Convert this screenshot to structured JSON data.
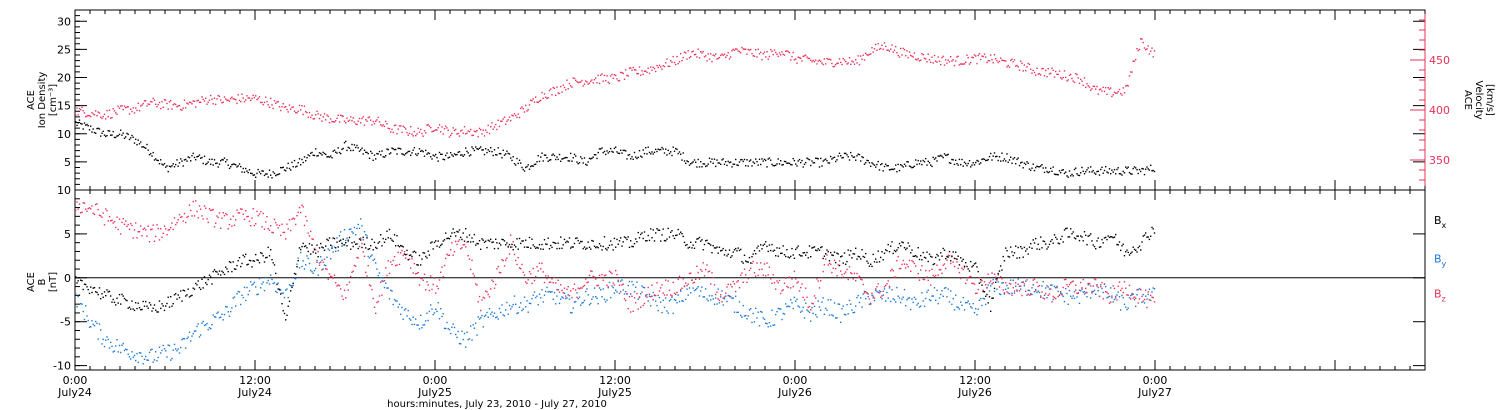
{
  "chart_data": [
    {
      "type": "scatter",
      "panel": "top",
      "ylabel_left": [
        "ACE",
        "Ion Density",
        "[cm⁻³]"
      ],
      "ylabel_right": [
        "ACE",
        "Velocity",
        "[km/s]"
      ],
      "ylim_left": [
        0,
        32
      ],
      "yticks_left": [
        5,
        10,
        15,
        20,
        25,
        30
      ],
      "ylim_right": [
        320,
        500
      ],
      "yticks_right": [
        350,
        400,
        450
      ],
      "colors": {
        "density": "#000000",
        "velocity": "#e8325a"
      },
      "series": [
        {
          "axis": "left",
          "color_key": "density",
          "x": [
            0,
            1,
            2,
            3,
            4,
            5,
            6,
            7,
            8,
            9,
            10,
            11,
            12,
            13,
            14,
            15,
            16,
            17,
            18,
            19,
            20,
            21,
            22,
            23,
            24,
            25,
            26,
            27,
            28,
            29,
            30,
            31,
            32,
            33,
            34,
            35,
            36,
            37,
            38,
            39,
            40,
            41,
            42,
            43,
            44,
            45,
            46,
            47,
            48,
            49,
            50,
            51,
            52,
            53,
            54,
            55,
            56,
            57,
            58,
            59,
            60,
            61,
            62,
            63,
            64,
            65,
            66,
            67,
            68,
            69,
            70,
            71,
            72
          ],
          "y": [
            12,
            11,
            10,
            10,
            9,
            7,
            4,
            5,
            6,
            5,
            5,
            4,
            3,
            3,
            4,
            5,
            7,
            6,
            8,
            7,
            6,
            7,
            7,
            7,
            6,
            6,
            7,
            7,
            7,
            6,
            4,
            6,
            6,
            6,
            5,
            7,
            7,
            6,
            7,
            7,
            7,
            5,
            5,
            5,
            5,
            5,
            5,
            5,
            5,
            5,
            5,
            6,
            6,
            5,
            4,
            4,
            5,
            5,
            6,
            5,
            5,
            6,
            6,
            5,
            4,
            4,
            3,
            3.5,
            3.5,
            3.5,
            3.5,
            3.5,
            4
          ]
        },
        {
          "axis": "right",
          "color_key": "velocity",
          "x": [
            0,
            1,
            2,
            3,
            4,
            5,
            6,
            7,
            8,
            9,
            10,
            11,
            12,
            13,
            14,
            15,
            16,
            17,
            18,
            19,
            20,
            21,
            22,
            23,
            24,
            25,
            26,
            27,
            28,
            29,
            30,
            31,
            32,
            33,
            34,
            35,
            36,
            37,
            38,
            39,
            40,
            41,
            42,
            43,
            44,
            45,
            46,
            47,
            48,
            49,
            50,
            51,
            52,
            53,
            54,
            55,
            56,
            57,
            58,
            59,
            60,
            61,
            62,
            63,
            64,
            65,
            66,
            67,
            68,
            69,
            70,
            71,
            72
          ],
          "y": [
            400,
            398,
            396,
            400,
            402,
            408,
            406,
            405,
            408,
            412,
            410,
            412,
            412,
            408,
            402,
            402,
            395,
            392,
            390,
            390,
            390,
            382,
            380,
            378,
            385,
            378,
            380,
            378,
            385,
            392,
            402,
            415,
            420,
            428,
            430,
            432,
            432,
            438,
            440,
            445,
            450,
            458,
            455,
            452,
            460,
            458,
            455,
            460,
            452,
            450,
            448,
            450,
            448,
            460,
            465,
            458,
            455,
            452,
            450,
            450,
            452,
            452,
            448,
            445,
            440,
            438,
            435,
            432,
            420,
            418,
            420,
            470,
            455
          ]
        }
      ]
    },
    {
      "type": "scatter",
      "panel": "bottom",
      "ylabel_left": [
        "ACE",
        "B",
        "[nT]"
      ],
      "ylim": [
        -10.5,
        10
      ],
      "yticks": [
        -10,
        -5,
        0,
        5,
        10
      ],
      "zero_line": true,
      "legend_position": "right",
      "colors": {
        "Bx": "#000000",
        "By": "#1a78d6",
        "Bz": "#e8325a"
      },
      "series": [
        {
          "name": "Bx",
          "color_key": "Bx",
          "x": [
            0,
            1,
            2,
            3,
            4,
            5,
            6,
            7,
            8,
            9,
            10,
            11,
            12,
            13,
            14,
            15,
            16,
            17,
            18,
            19,
            20,
            21,
            22,
            23,
            24,
            25,
            26,
            27,
            28,
            29,
            30,
            31,
            32,
            33,
            34,
            35,
            36,
            37,
            38,
            39,
            40,
            41,
            42,
            43,
            44,
            45,
            46,
            47,
            48,
            49,
            50,
            51,
            52,
            53,
            54,
            55,
            56,
            57,
            58,
            59,
            60,
            61,
            62,
            63,
            64,
            65,
            66,
            67,
            68,
            69,
            70,
            71,
            72
          ],
          "y": [
            -0.5,
            -1,
            -2,
            -2.5,
            -3,
            -3.5,
            -3,
            -2,
            -1,
            0,
            1,
            2,
            2,
            3,
            -5,
            4,
            3,
            4,
            4,
            4,
            4,
            5,
            3,
            2,
            4,
            5,
            5,
            4,
            4,
            4,
            4,
            4,
            4,
            4,
            4,
            4,
            4,
            4,
            5,
            5,
            5,
            4,
            4,
            3,
            3,
            2,
            4,
            3,
            3,
            3,
            3,
            2,
            3,
            2,
            3,
            4,
            3,
            2,
            3,
            2,
            1,
            -3,
            3,
            3,
            4,
            4,
            5,
            5,
            4,
            5,
            3,
            4,
            6
          ]
        },
        {
          "name": "By",
          "color_key": "By",
          "x": [
            0,
            1,
            2,
            3,
            4,
            5,
            6,
            7,
            8,
            9,
            10,
            11,
            12,
            13,
            14,
            15,
            16,
            17,
            18,
            19,
            20,
            21,
            22,
            23,
            24,
            25,
            26,
            27,
            28,
            29,
            30,
            31,
            32,
            33,
            34,
            35,
            36,
            37,
            38,
            39,
            40,
            41,
            42,
            43,
            44,
            45,
            46,
            47,
            48,
            49,
            50,
            51,
            52,
            53,
            54,
            55,
            56,
            57,
            58,
            59,
            60,
            61,
            62,
            63,
            64,
            65,
            66,
            67,
            68,
            69,
            70,
            71,
            72
          ],
          "y": [
            -2,
            -5,
            -7,
            -8,
            -8.5,
            -9,
            -8.5,
            -8,
            -6,
            -5,
            -4,
            -2,
            -1,
            0,
            -2,
            2,
            1,
            3,
            5,
            6,
            1,
            -2,
            -4,
            -5,
            -3,
            -6,
            -7,
            -5,
            -4,
            -3,
            -3,
            -2,
            -2,
            -3,
            -2,
            -2,
            -1,
            -1,
            -2,
            -3,
            -3,
            -1,
            -2,
            -2,
            -3,
            -4,
            -5,
            -4,
            -3,
            -4,
            -3,
            -4,
            -3,
            -2,
            -2,
            -2,
            -3,
            -2,
            -2,
            -3,
            -4,
            -1,
            -1,
            -1,
            -1,
            -1.5,
            -2,
            -2,
            -1,
            -2,
            -3,
            -2,
            -2
          ]
        },
        {
          "name": "Bz",
          "color_key": "Bz",
          "x": [
            0,
            1,
            2,
            3,
            4,
            5,
            6,
            7,
            8,
            9,
            10,
            11,
            12,
            13,
            14,
            15,
            16,
            17,
            18,
            19,
            20,
            21,
            22,
            23,
            24,
            25,
            26,
            27,
            28,
            29,
            30,
            31,
            32,
            33,
            34,
            35,
            36,
            37,
            38,
            39,
            40,
            41,
            42,
            43,
            44,
            45,
            46,
            47,
            48,
            49,
            50,
            51,
            52,
            53,
            54,
            55,
            56,
            57,
            58,
            59,
            60,
            61,
            62,
            63,
            64,
            65,
            66,
            67,
            68,
            69,
            70,
            71,
            72
          ],
          "y": [
            8.5,
            8,
            7,
            6,
            5.5,
            5,
            5.5,
            7,
            8,
            7,
            6.5,
            7,
            7,
            6,
            5,
            8,
            3,
            0,
            -2,
            4,
            -3,
            2,
            3,
            0,
            -1,
            3,
            4,
            -3,
            0,
            4,
            0,
            1,
            -1,
            -2,
            0,
            0,
            0,
            -3,
            -2,
            -1,
            -1,
            0,
            1,
            -2,
            -1,
            1,
            1,
            -1,
            0,
            -3,
            2,
            1,
            0,
            -2,
            -1,
            2,
            1,
            0,
            2,
            1,
            -1,
            0,
            -1,
            -1,
            -1,
            -2,
            -1,
            -1,
            -1,
            -2,
            -1,
            -2,
            -3
          ]
        }
      ],
      "legend": [
        {
          "label": "B",
          "sub": "x",
          "color_key": "Bx"
        },
        {
          "label": "B",
          "sub": "y",
          "color_key": "By"
        },
        {
          "label": "B",
          "sub": "z",
          "color_key": "Bz"
        }
      ]
    }
  ],
  "x_axis": {
    "xlim_hours": [
      0,
      90
    ],
    "major_ticks": [
      {
        "hour": 0,
        "time": "0:00",
        "date": "July24"
      },
      {
        "hour": 12,
        "time": "12:00",
        "date": "July24"
      },
      {
        "hour": 24,
        "time": "0:00",
        "date": "July25"
      },
      {
        "hour": 36,
        "time": "12:00",
        "date": "July25"
      },
      {
        "hour": 48,
        "time": "0:00",
        "date": "July26"
      },
      {
        "hour": 60,
        "time": "12:00",
        "date": "July26"
      },
      {
        "hour": 72,
        "time": "0:00",
        "date": "July27"
      }
    ],
    "title": "hours:minutes, July 23, 2010 - July 27, 2010"
  }
}
